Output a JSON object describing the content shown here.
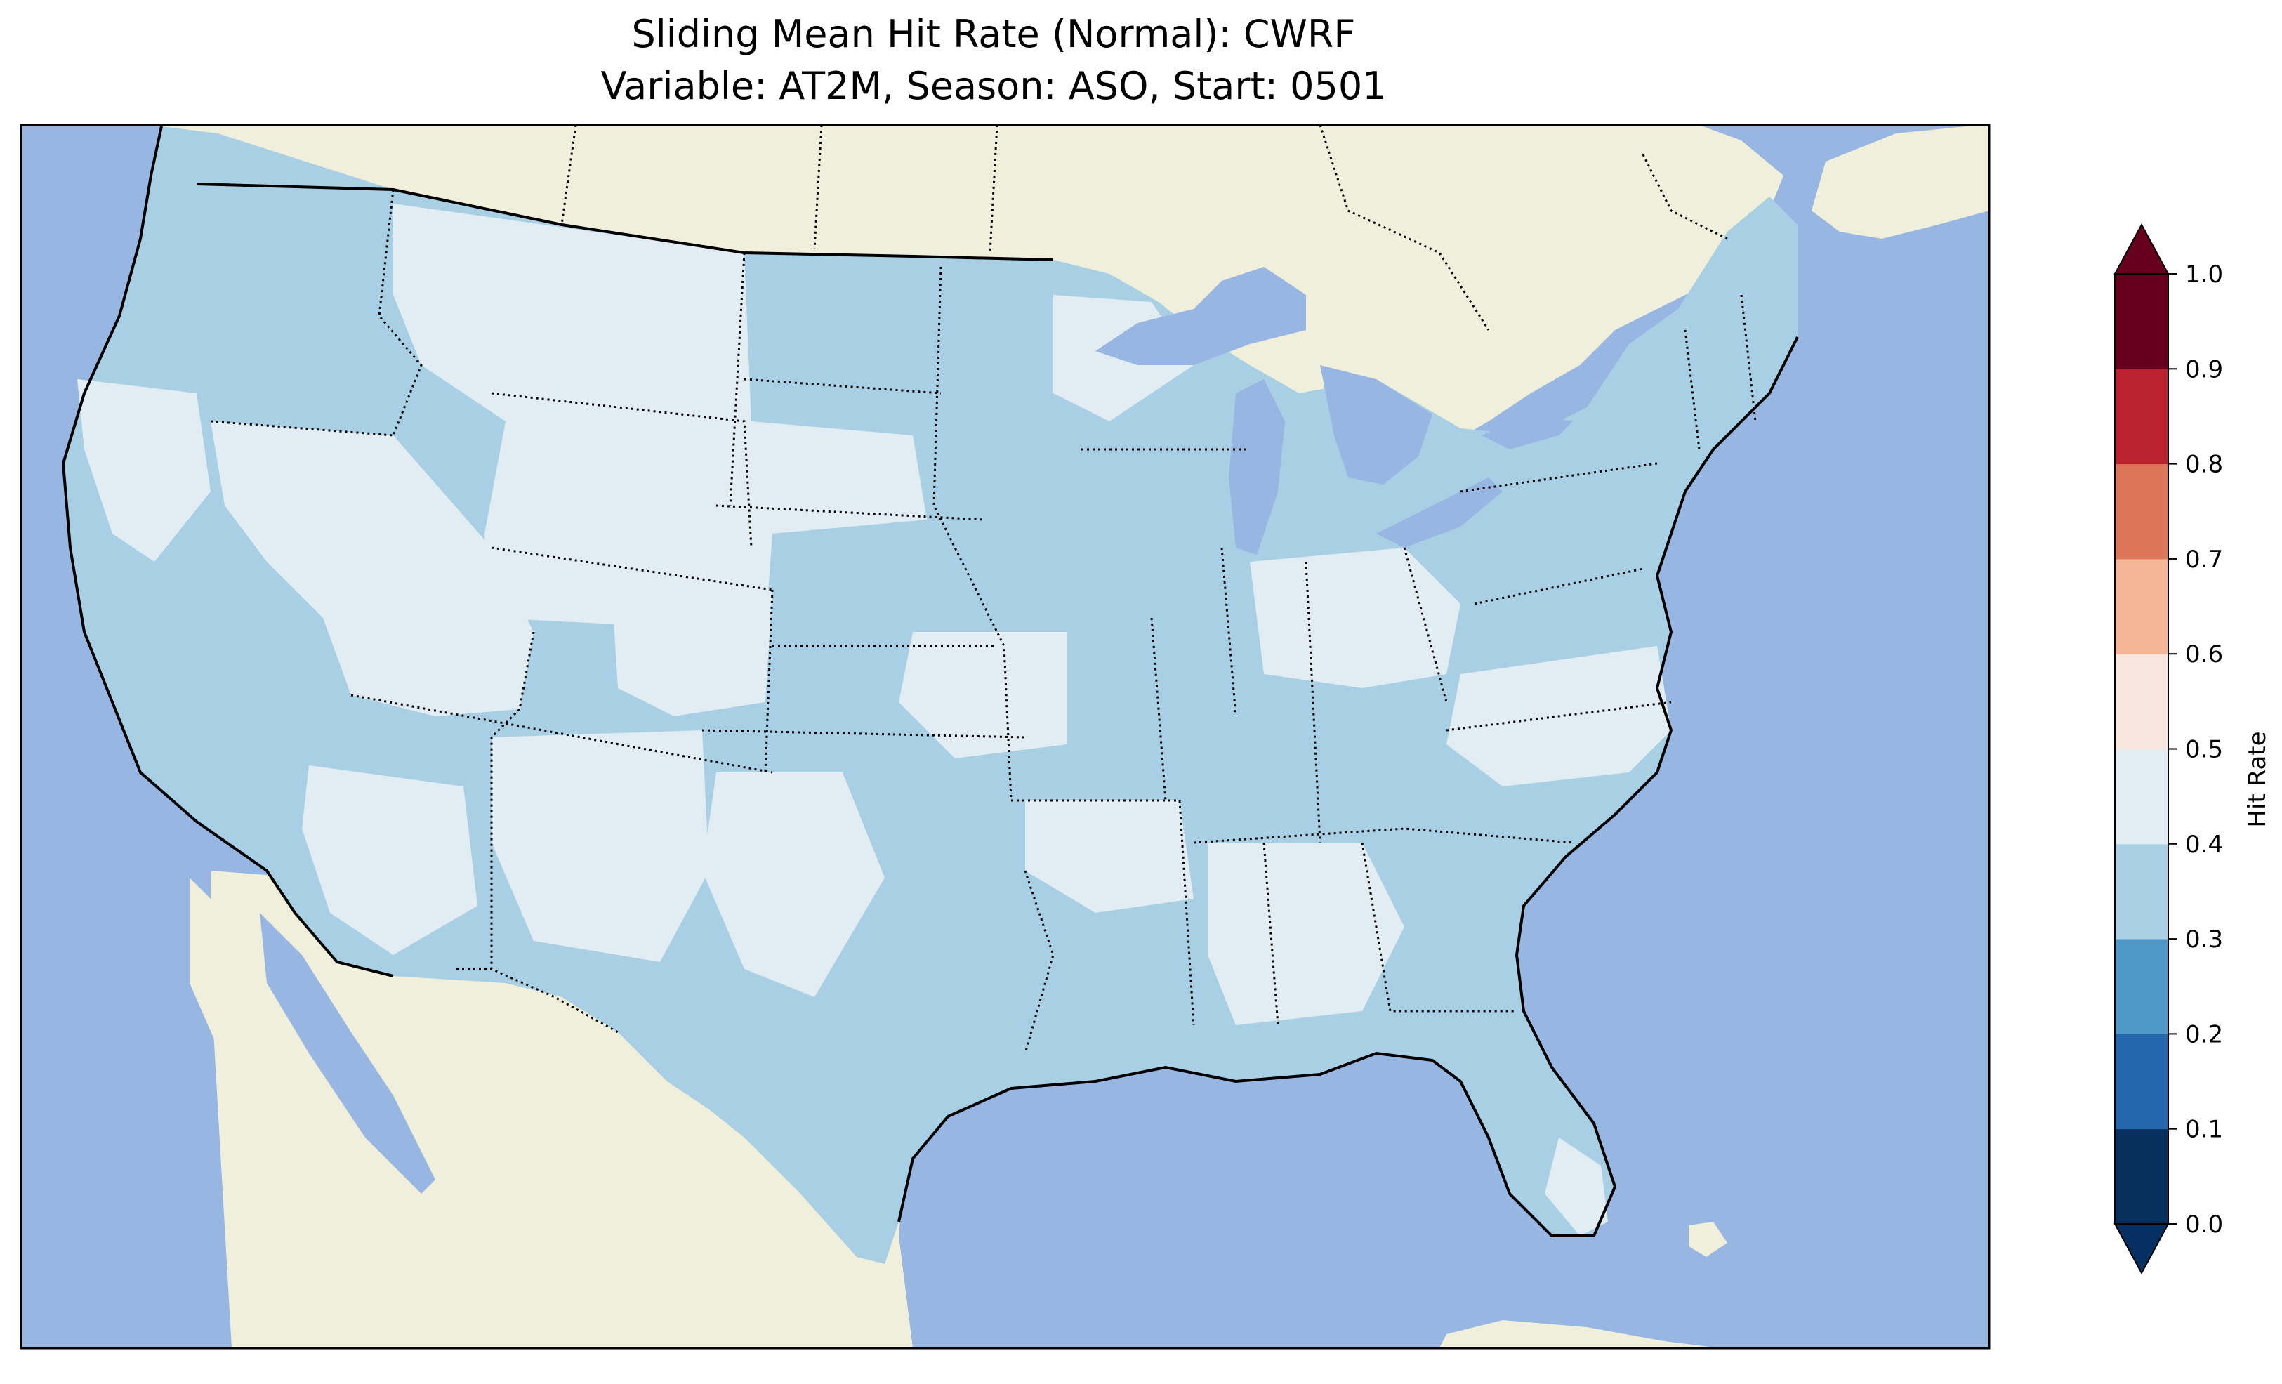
{
  "title_line1": "Sliding Mean Hit Rate (Normal): CWRF",
  "title_line2": "Variable: AT2M, Season: ASO, Start: 0501",
  "colorbar": {
    "label": "Hit Rate",
    "ticks": [
      "0.0",
      "0.1",
      "0.2",
      "0.3",
      "0.4",
      "0.5",
      "0.6",
      "0.7",
      "0.8",
      "0.9",
      "1.0"
    ],
    "colors": [
      "#053061",
      "#2166ac",
      "#4393c3",
      "#92c5de",
      "#d1e5f0",
      "#f7f7f7",
      "#fddbc7",
      "#f4a582",
      "#d6604d",
      "#b2182b",
      "#67001f"
    ],
    "bin_colors": [
      "#08305f",
      "#2467ad",
      "#4f97c6",
      "#a8cfe3",
      "#e2ecf3",
      "#f8e6de",
      "#f5b697",
      "#dd7659",
      "#b9222e",
      "#67001f"
    ],
    "extend": "both"
  },
  "map": {
    "ocean_color": "#97b6e1",
    "land_color": "#efefdb",
    "dominant_hit_rate_bins": [
      "0.3-0.4",
      "0.4-0.5"
    ]
  }
}
